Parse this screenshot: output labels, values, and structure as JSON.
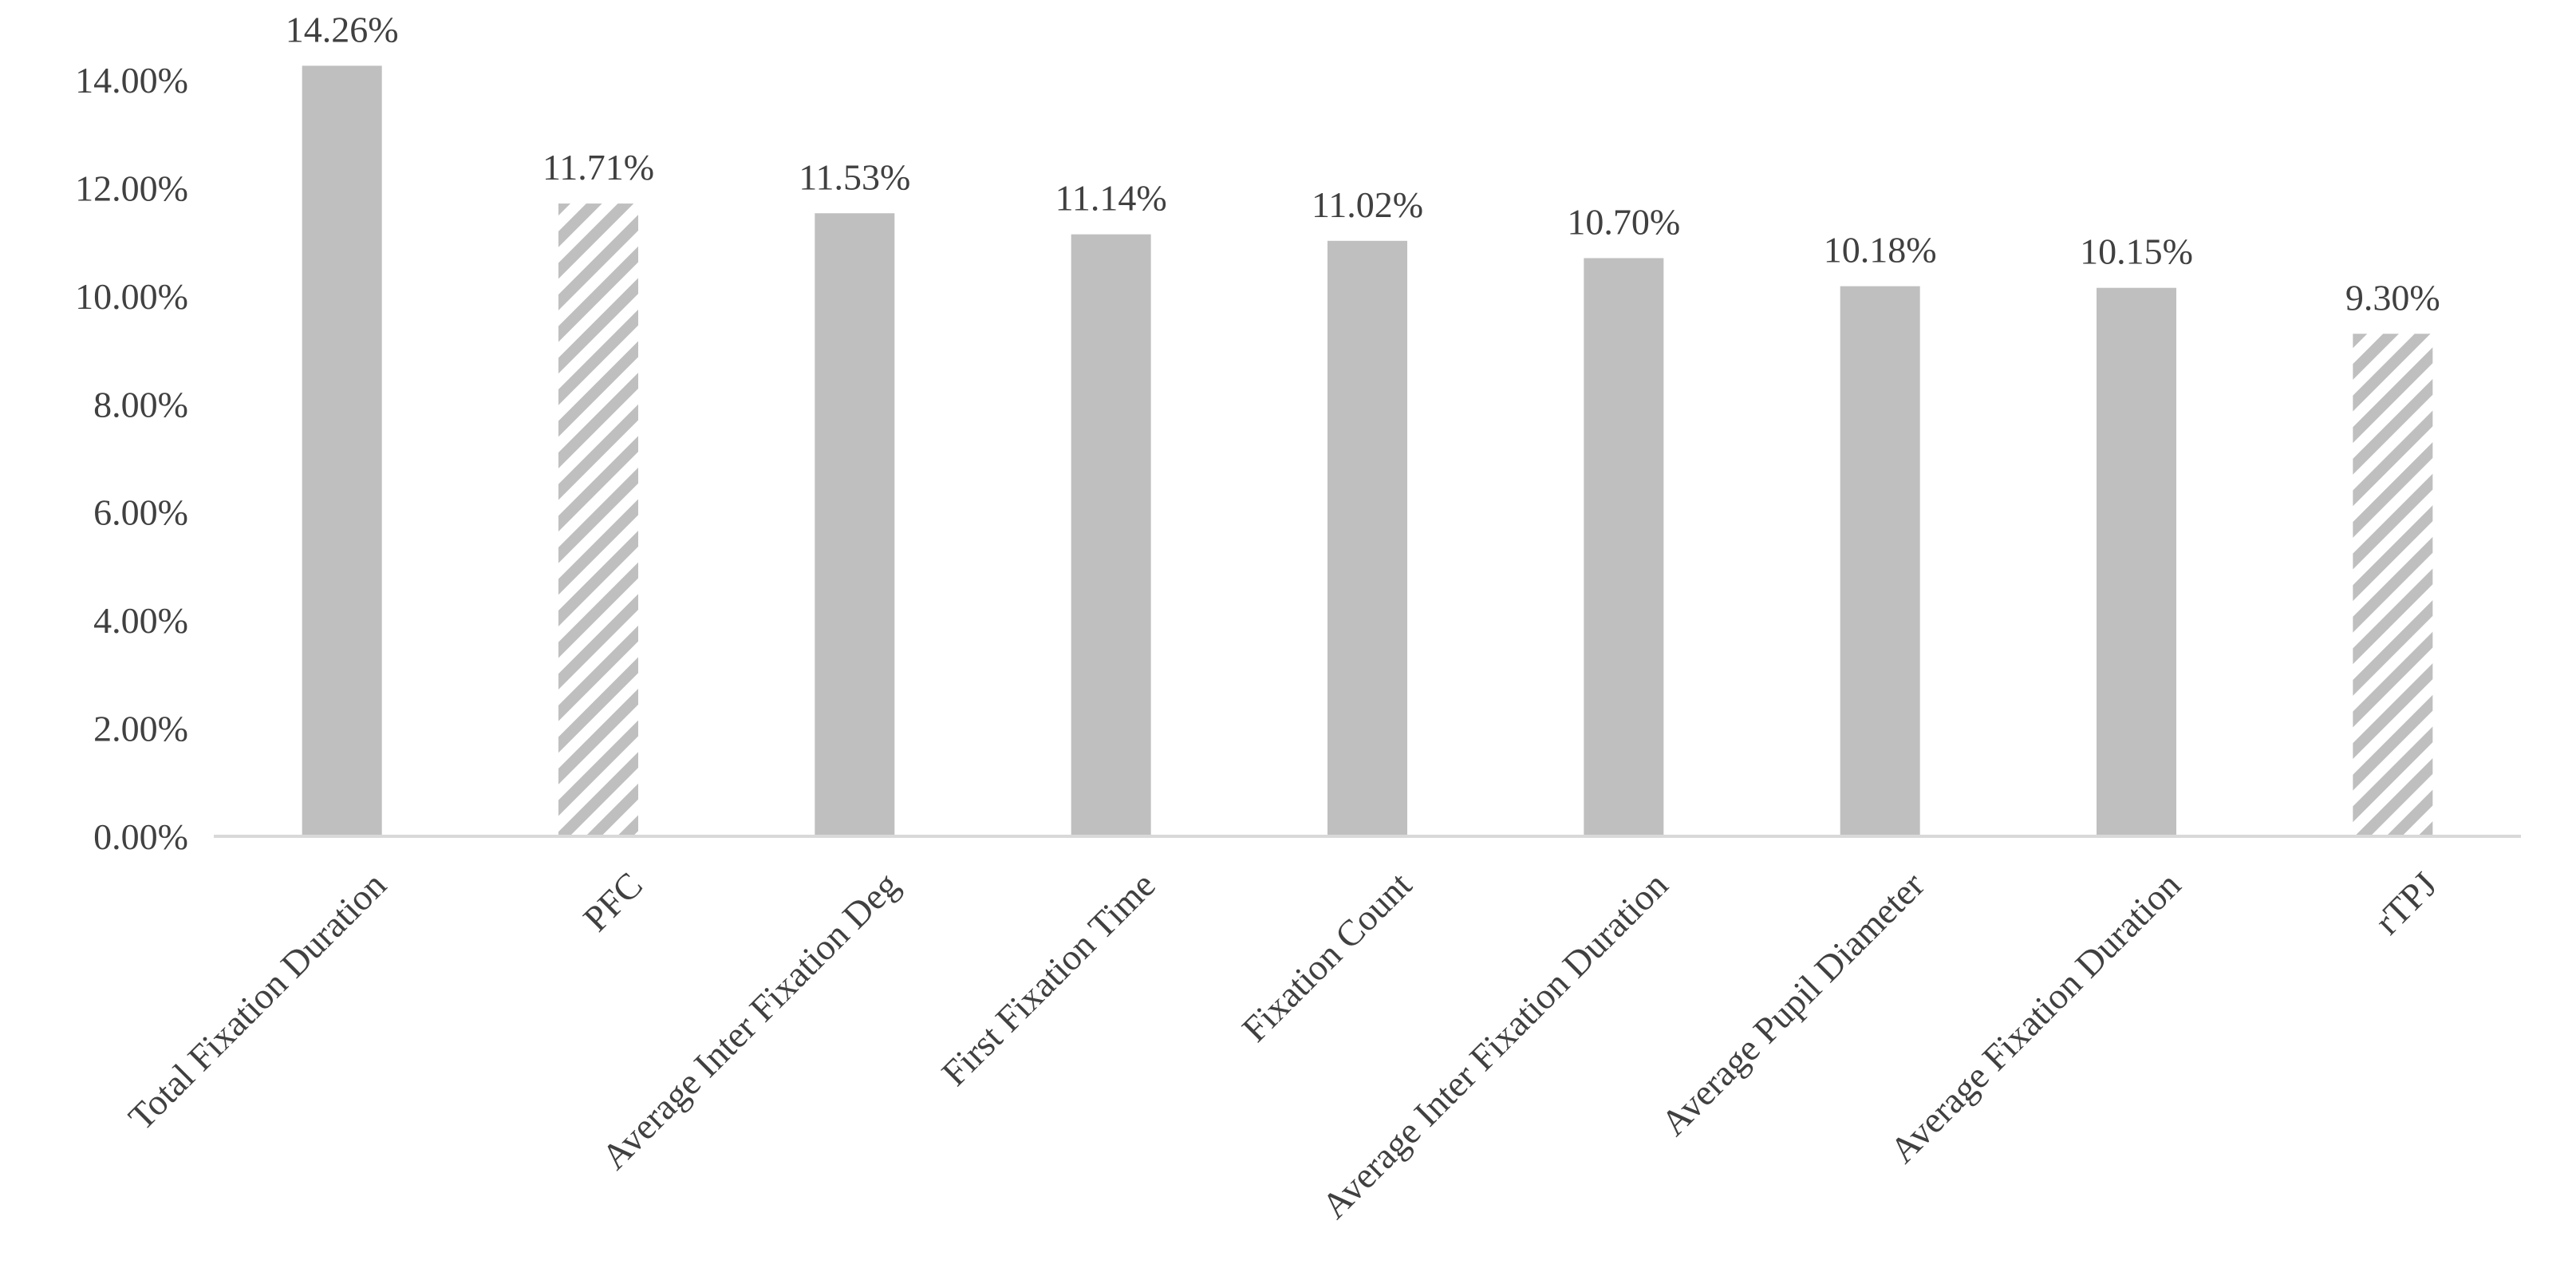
{
  "chart_data": {
    "type": "bar",
    "title": "",
    "xlabel": "",
    "ylabel": "",
    "ylim": [
      0,
      14
    ],
    "y_ticks": [
      0,
      2,
      4,
      6,
      8,
      10,
      12,
      14
    ],
    "y_tick_labels": [
      "0.00%",
      "2.00%",
      "4.00%",
      "6.00%",
      "8.00%",
      "10.00%",
      "12.00%",
      "14.00%"
    ],
    "grid": false,
    "legend": "none",
    "categories": [
      "Total Fixation Duration",
      "PFC",
      "Average Inter Fixation Deg",
      "First Fixation Time",
      "Fixation Count",
      "Average Inter Fixation Duration",
      "Average Pupil Diameter",
      "Average Fixation Duration",
      "rTPJ"
    ],
    "values": [
      14.26,
      11.71,
      11.53,
      11.14,
      11.02,
      10.7,
      10.18,
      10.15,
      9.3
    ],
    "data_labels": [
      "14.26%",
      "11.71%",
      "11.53%",
      "11.14%",
      "11.02%",
      "10.70%",
      "10.18%",
      "10.15%",
      "9.30%"
    ],
    "bar_fill": [
      "solid",
      "hatched",
      "solid",
      "solid",
      "solid",
      "solid",
      "solid",
      "solid",
      "hatched"
    ],
    "colors": {
      "bar": "#bfbfbf",
      "hatch": "#bfbfbf",
      "axis": "#d9d9d9",
      "text": "#404040"
    }
  }
}
